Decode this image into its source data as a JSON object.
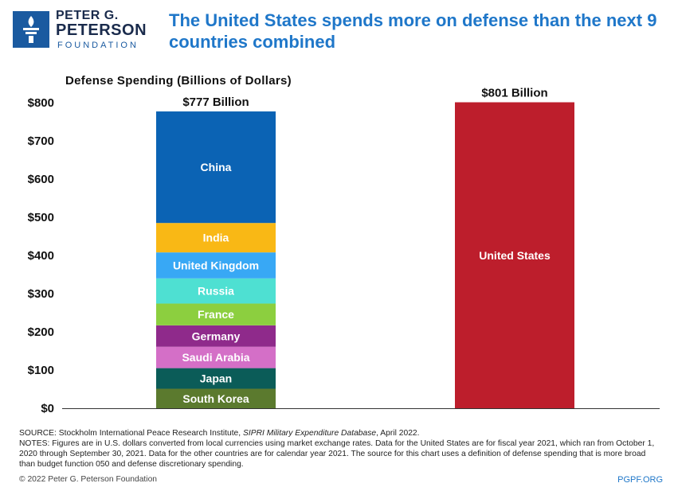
{
  "brand": {
    "line1": "PETER G.",
    "line2": "PETERSON",
    "line3": "FOUNDATION",
    "site": "PGPF.ORG",
    "copyright": "© 2022 Peter G. Peterson Foundation"
  },
  "header": {
    "title": "The United States spends more on defense than the next 9 countries combined"
  },
  "chart_data": {
    "type": "bar",
    "stacked": true,
    "title": "The United States spends more on defense than the next 9 countries combined",
    "subtitle": "Defense Spending (Billions of Dollars)",
    "ylabel": "",
    "xlabel": "",
    "ylim": [
      0,
      800
    ],
    "yticks": [
      0,
      100,
      200,
      300,
      400,
      500,
      600,
      700,
      800
    ],
    "ytick_labels": [
      "$0",
      "$100",
      "$200",
      "$300",
      "$400",
      "$500",
      "$600",
      "$700",
      "$800"
    ],
    "grid": false,
    "bars": [
      {
        "total": 777,
        "total_label": "$777 Billion",
        "segments": [
          {
            "name": "South Korea",
            "value": 51,
            "color": "#5b7a2e"
          },
          {
            "name": "Japan",
            "value": 54,
            "color": "#0b5c58"
          },
          {
            "name": "Saudi Arabia",
            "value": 56,
            "color": "#d46fc7"
          },
          {
            "name": "Germany",
            "value": 56,
            "color": "#8f2a8b"
          },
          {
            "name": "France",
            "value": 57,
            "color": "#8ccf3f"
          },
          {
            "name": "Russia",
            "value": 66,
            "color": "#4ee0d2"
          },
          {
            "name": "United Kingdom",
            "value": 68,
            "color": "#38a8f5"
          },
          {
            "name": "India",
            "value": 77,
            "color": "#f9b815"
          },
          {
            "name": "China",
            "value": 292,
            "color": "#0b63b4"
          }
        ]
      },
      {
        "total": 801,
        "total_label": "$801 Billion",
        "segments": [
          {
            "name": "United States",
            "value": 801,
            "color": "#bd1e2c"
          }
        ]
      }
    ]
  },
  "notes": {
    "source_prefix": "SOURCE: Stockholm International Peace Research Institute, ",
    "source_title": "SIPRI Military Expenditure Database",
    "source_suffix": ", April 2022.",
    "notes_text": "NOTES: Figures are in U.S. dollars converted from local currencies using market exchange rates. Data for the United States are for fiscal year 2021, which ran from October 1, 2020 through September 30, 2021. Data for the other countries are for calendar year 2021. The source for this chart uses a definition of defense spending that is more broad than budget function 050 and defense discretionary spending."
  }
}
